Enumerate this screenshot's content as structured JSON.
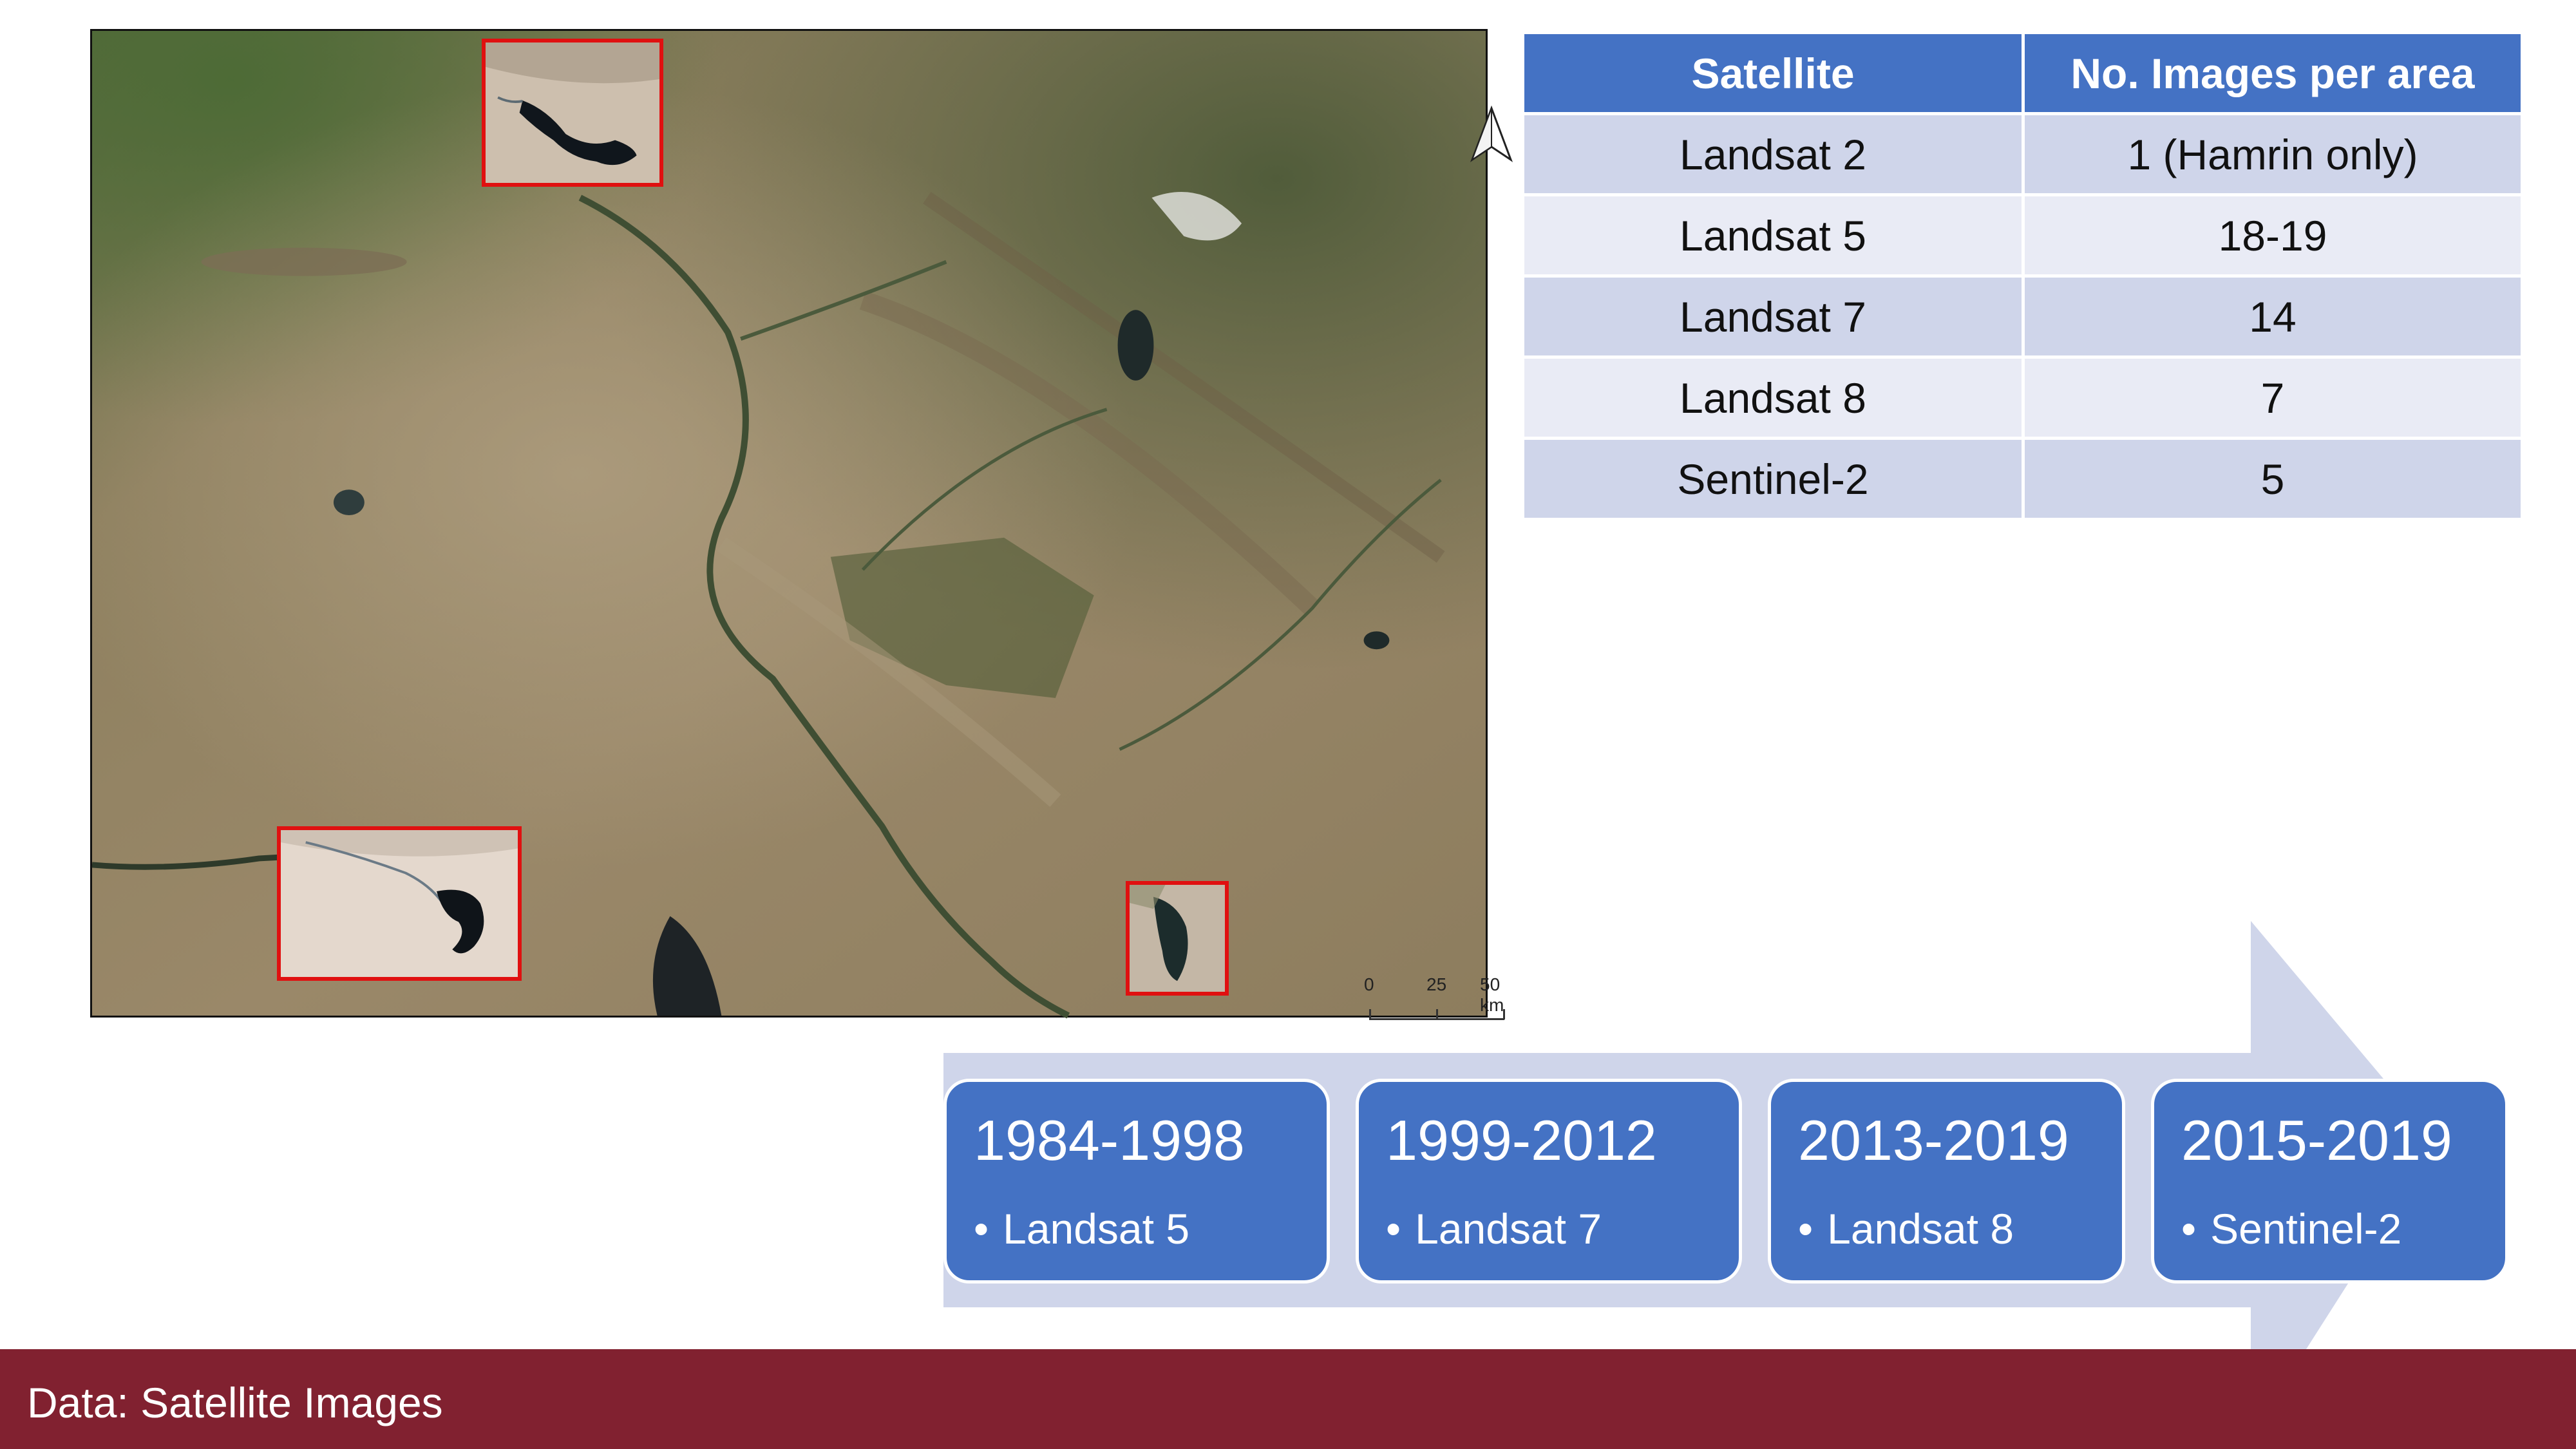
{
  "map": {
    "north_arrow_icon": "north-arrow-icon",
    "scale_bar": {
      "labels": [
        "0",
        "25",
        "50 km"
      ]
    },
    "insets": [
      "reservoir-inset-north",
      "reservoir-inset-southwest",
      "reservoir-inset-southeast"
    ]
  },
  "table": {
    "headers": [
      "Satellite",
      "No. Images per area"
    ],
    "rows": [
      [
        "Landsat 2",
        "1 (Hamrin only)"
      ],
      [
        "Landsat 5",
        "18-19"
      ],
      [
        "Landsat 7",
        "14"
      ],
      [
        "Landsat 8",
        "7"
      ],
      [
        "Sentinel-2",
        "5"
      ]
    ]
  },
  "timeline": {
    "periods": [
      {
        "years": "1984-1998",
        "satellite": "Landsat 5"
      },
      {
        "years": "1999-2012",
        "satellite": "Landsat 7"
      },
      {
        "years": "2013-2019",
        "satellite": "Landsat 8"
      },
      {
        "years": "2015-2019",
        "satellite": "Sentinel-2"
      }
    ],
    "bullet": "•"
  },
  "footer": {
    "title": "Data: Satellite Images"
  },
  "colors": {
    "table_header": "#4472c4",
    "table_row_odd": "#cfd5ea",
    "table_row_even": "#e9ebf5",
    "timeline_box": "#4472c4",
    "timeline_arrow": "#cfd5ea",
    "footer": "#812130",
    "inset_border": "#e01010"
  }
}
